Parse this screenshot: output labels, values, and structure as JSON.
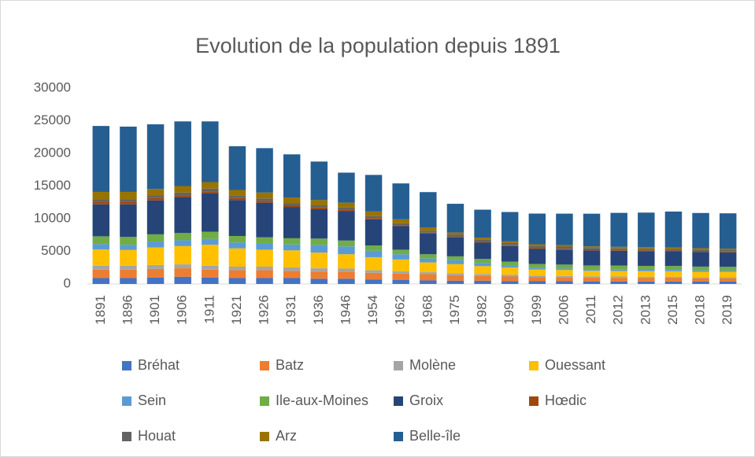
{
  "chart_data": {
    "type": "bar",
    "stacked": true,
    "title": "Evolution de la population depuis 1891",
    "categories": [
      "1891",
      "1896",
      "1901",
      "1906",
      "1911",
      "1921",
      "1926",
      "1931",
      "1936",
      "1946",
      "1954",
      "1962",
      "1968",
      "1975",
      "1982",
      "1990",
      "1999",
      "2006",
      "2011",
      "2012",
      "2013",
      "2015",
      "2018",
      "2019"
    ],
    "ylim": [
      0,
      30000
    ],
    "yticks": [
      0,
      5000,
      10000,
      15000,
      20000,
      25000,
      30000
    ],
    "grid": false,
    "legend": "bottom",
    "series": [
      {
        "name": "Bréhat",
        "color": "#4472c4",
        "values": [
          900,
          900,
          1000,
          1100,
          1000,
          900,
          900,
          900,
          800,
          800,
          700,
          600,
          550,
          500,
          500,
          450,
          420,
          430,
          400,
          390,
          380,
          380,
          370,
          370
        ]
      },
      {
        "name": "Batz",
        "color": "#ed7d31",
        "values": [
          1300,
          1300,
          1300,
          1300,
          1200,
          1200,
          1200,
          1100,
          1100,
          1100,
          1000,
          1000,
          950,
          850,
          750,
          700,
          600,
          580,
          550,
          540,
          530,
          520,
          490,
          480
        ]
      },
      {
        "name": "Molène",
        "color": "#a5a5a5",
        "values": [
          600,
          600,
          600,
          600,
          600,
          550,
          550,
          550,
          500,
          450,
          400,
          350,
          300,
          280,
          280,
          270,
          260,
          230,
          210,
          210,
          200,
          200,
          180,
          170
        ]
      },
      {
        "name": "Ouessant",
        "color": "#ffc000",
        "values": [
          2500,
          2400,
          2700,
          2800,
          3200,
          2800,
          2600,
          2600,
          2400,
          2200,
          2000,
          1800,
          1500,
          1400,
          1200,
          1100,
          930,
          900,
          860,
          850,
          850,
          840,
          830,
          820
        ]
      },
      {
        "name": "Sein",
        "color": "#5b9bd5",
        "values": [
          800,
          800,
          900,
          900,
          900,
          900,
          900,
          900,
          1200,
          1200,
          1000,
          800,
          600,
          600,
          500,
          300,
          240,
          230,
          220,
          220,
          210,
          210,
          200,
          200
        ]
      },
      {
        "name": "Ile-aux-Moines",
        "color": "#70ad47",
        "values": [
          1200,
          1200,
          1100,
          1100,
          1100,
          1000,
          1000,
          950,
          950,
          900,
          800,
          700,
          650,
          600,
          600,
          600,
          610,
          600,
          600,
          600,
          600,
          600,
          590,
          580
        ]
      },
      {
        "name": "Groix",
        "color": "#264478",
        "values": [
          4900,
          5000,
          5200,
          5500,
          5900,
          5500,
          5300,
          4800,
          4500,
          4500,
          4000,
          3600,
          3200,
          2900,
          2500,
          2400,
          2300,
          2300,
          2300,
          2280,
          2270,
          2260,
          2240,
          2230
        ]
      },
      {
        "name": "Hœdic",
        "color": "#9e480e",
        "values": [
          400,
          400,
          350,
          300,
          300,
          300,
          300,
          250,
          250,
          250,
          200,
          150,
          120,
          100,
          110,
          110,
          130,
          120,
          100,
          100,
          100,
          100,
          100,
          100
        ]
      },
      {
        "name": "Houat",
        "color": "#636363",
        "values": [
          400,
          400,
          400,
          400,
          400,
          350,
          350,
          350,
          350,
          300,
          300,
          300,
          300,
          350,
          390,
          340,
          340,
          330,
          280,
          260,
          250,
          240,
          230,
          230
        ]
      },
      {
        "name": "Arz",
        "color": "#997300",
        "values": [
          1100,
          1100,
          1000,
          1000,
          1000,
          900,
          900,
          850,
          800,
          750,
          700,
          600,
          500,
          300,
          250,
          250,
          250,
          250,
          240,
          240,
          240,
          240,
          240,
          240
        ]
      },
      {
        "name": "Belle-île",
        "color": "#255e91",
        "values": [
          10100,
          10000,
          9900,
          9900,
          9300,
          6700,
          6800,
          6600,
          5900,
          4600,
          5600,
          5500,
          5400,
          4400,
          4300,
          4500,
          4700,
          4800,
          5000,
          5200,
          5300,
          5500,
          5400,
          5400
        ]
      }
    ]
  }
}
